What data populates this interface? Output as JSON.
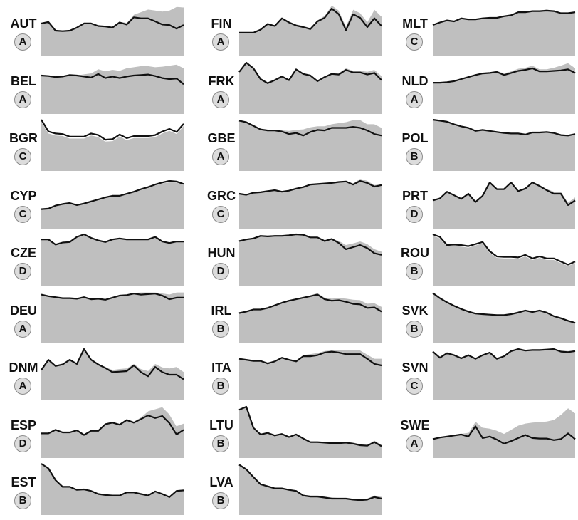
{
  "chart_data": {
    "type": "area",
    "layout": "small-multiples 3 columns",
    "colors": {
      "area": "#bfbfbf",
      "line": "#111111",
      "badge": "#dcdcdc"
    },
    "panels": [
      {
        "country": "AUT",
        "grade": "A",
        "line": [
          64,
          67,
          50,
          49,
          50,
          56,
          64,
          64,
          59,
          58,
          56,
          66,
          62,
          76,
          74,
          74,
          68,
          62,
          61,
          54,
          61
        ],
        "area": [
          64,
          67,
          50,
          49,
          50,
          56,
          65,
          65,
          59,
          59,
          57,
          68,
          66,
          82,
          87,
          92,
          90,
          88,
          90,
          97,
          96
        ]
      },
      {
        "country": "BEL",
        "grade": "A",
        "line": [
          75,
          74,
          72,
          73,
          76,
          75,
          73,
          71,
          78,
          70,
          73,
          70,
          73,
          75,
          76,
          77,
          74,
          70,
          68,
          69,
          58
        ],
        "area": [
          75,
          74,
          72,
          73,
          76,
          76,
          78,
          80,
          88,
          84,
          87,
          85,
          90,
          92,
          94,
          94,
          92,
          93,
          95,
          97,
          90
        ]
      },
      {
        "country": "BGR",
        "grade": "C",
        "line": [
          100,
          77,
          73,
          72,
          67,
          67,
          67,
          73,
          70,
          61,
          62,
          71,
          64,
          68,
          68,
          68,
          70,
          77,
          82,
          76,
          92
        ],
        "area": [
          98,
          74,
          70,
          69,
          64,
          64,
          64,
          70,
          67,
          58,
          59,
          68,
          61,
          65,
          65,
          65,
          67,
          74,
          79,
          73,
          89
        ]
      },
      {
        "country": "CYP",
        "grade": "C",
        "line": [
          38,
          39,
          45,
          48,
          50,
          46,
          49,
          53,
          57,
          61,
          64,
          64,
          68,
          72,
          77,
          81,
          86,
          90,
          93,
          92,
          87
        ],
        "area": [
          38,
          39,
          45,
          48,
          50,
          46,
          49,
          53,
          57,
          61,
          64,
          64,
          68,
          72,
          77,
          81,
          85,
          89,
          91,
          91,
          86
        ]
      },
      {
        "country": "CZE",
        "grade": "D",
        "line": [
          90,
          90,
          80,
          84,
          85,
          95,
          100,
          93,
          88,
          85,
          90,
          92,
          90,
          90,
          90,
          90,
          95,
          86,
          83,
          86,
          86
        ],
        "area": [
          90,
          90,
          80,
          84,
          85,
          95,
          100,
          93,
          88,
          85,
          90,
          92,
          90,
          90,
          90,
          90,
          95,
          87,
          85,
          88,
          88
        ]
      },
      {
        "country": "DEU",
        "grade": "A",
        "line": [
          95,
          92,
          90,
          88,
          88,
          87,
          90,
          86,
          87,
          85,
          89,
          93,
          94,
          97,
          95,
          96,
          97,
          93,
          86,
          89,
          89
        ],
        "area": [
          95,
          92,
          90,
          88,
          88,
          87,
          90,
          86,
          87,
          85,
          89,
          93,
          95,
          99,
          100,
          100,
          100,
          98,
          96,
          100,
          100
        ]
      },
      {
        "country": "DNM",
        "grade": "A",
        "line": [
          59,
          79,
          67,
          70,
          79,
          71,
          100,
          79,
          70,
          63,
          55,
          56,
          57,
          68,
          55,
          47,
          65,
          55,
          50,
          50,
          41
        ],
        "area": [
          59,
          79,
          67,
          70,
          79,
          71,
          100,
          80,
          72,
          66,
          60,
          62,
          63,
          72,
          62,
          58,
          72,
          65,
          63,
          66,
          56
        ]
      },
      {
        "country": "ESP",
        "grade": "D",
        "line": [
          48,
          48,
          55,
          50,
          50,
          54,
          45,
          53,
          53,
          66,
          69,
          65,
          74,
          69,
          76,
          83,
          78,
          82,
          68,
          46,
          55
        ],
        "area": [
          48,
          48,
          55,
          50,
          50,
          54,
          45,
          53,
          53,
          67,
          70,
          67,
          77,
          72,
          80,
          92,
          96,
          100,
          86,
          63,
          68
        ]
      },
      {
        "country": "EST",
        "grade": "B",
        "line": [
          100,
          91,
          68,
          55,
          55,
          49,
          50,
          47,
          41,
          39,
          38,
          38,
          44,
          44,
          41,
          38,
          46,
          41,
          35,
          47,
          48
        ],
        "area": [
          100,
          91,
          68,
          55,
          55,
          49,
          50,
          47,
          41,
          39,
          38,
          38,
          44,
          44,
          41,
          38,
          46,
          41,
          35,
          47,
          48
        ]
      },
      {
        "country": "FIN",
        "grade": "A",
        "line": [
          46,
          46,
          46,
          52,
          63,
          59,
          74,
          66,
          60,
          57,
          53,
          68,
          75,
          93,
          82,
          51,
          82,
          75,
          57,
          74,
          59
        ],
        "area": [
          46,
          46,
          46,
          52,
          64,
          60,
          76,
          68,
          63,
          60,
          56,
          71,
          80,
          100,
          90,
          60,
          92,
          85,
          68,
          92,
          78
        ]
      },
      {
        "country": "FRK",
        "grade": "A",
        "line": [
          82,
          100,
          89,
          68,
          60,
          66,
          73,
          66,
          87,
          78,
          75,
          64,
          72,
          78,
          77,
          86,
          81,
          81,
          77,
          80,
          66
        ],
        "area": [
          82,
          100,
          89,
          68,
          60,
          66,
          73,
          66,
          87,
          78,
          75,
          64,
          74,
          81,
          81,
          90,
          85,
          85,
          83,
          87,
          75
        ]
      },
      {
        "country": "GBE",
        "grade": "A",
        "line": [
          98,
          95,
          88,
          81,
          79,
          79,
          77,
          72,
          74,
          69,
          76,
          80,
          79,
          84,
          84,
          84,
          86,
          84,
          79,
          72,
          69
        ],
        "area": [
          98,
          95,
          88,
          81,
          80,
          81,
          80,
          79,
          81,
          82,
          86,
          88,
          88,
          92,
          94,
          96,
          100,
          100,
          92,
          92,
          85
        ]
      },
      {
        "country": "GRC",
        "grade": "C",
        "line": [
          68,
          66,
          70,
          71,
          73,
          75,
          72,
          74,
          78,
          81,
          86,
          87,
          88,
          89,
          91,
          92,
          86,
          93,
          89,
          82,
          85
        ],
        "area": [
          68,
          66,
          70,
          71,
          73,
          75,
          72,
          74,
          78,
          81,
          86,
          87,
          88,
          90,
          92,
          94,
          89,
          98,
          94,
          86,
          87
        ]
      },
      {
        "country": "HUN",
        "grade": "D",
        "line": [
          87,
          90,
          92,
          97,
          96,
          97,
          97,
          98,
          100,
          99,
          94,
          94,
          87,
          91,
          83,
          71,
          75,
          79,
          73,
          63,
          60
        ],
        "area": [
          87,
          90,
          92,
          97,
          96,
          97,
          97,
          98,
          100,
          99,
          94,
          94,
          88,
          92,
          88,
          80,
          83,
          87,
          82,
          72,
          67
        ]
      },
      {
        "country": "IRL",
        "grade": "B",
        "line": [
          59,
          62,
          66,
          66,
          69,
          74,
          79,
          83,
          86,
          89,
          92,
          95,
          86,
          83,
          84,
          81,
          77,
          76,
          69,
          70,
          62
        ],
        "area": [
          59,
          62,
          66,
          66,
          69,
          74,
          79,
          83,
          87,
          90,
          94,
          99,
          90,
          88,
          89,
          88,
          86,
          85,
          78,
          79,
          72
        ]
      },
      {
        "country": "ITA",
        "grade": "B",
        "line": [
          81,
          79,
          77,
          77,
          72,
          76,
          83,
          79,
          76,
          86,
          86,
          88,
          93,
          95,
          93,
          90,
          90,
          90,
          81,
          71,
          68
        ],
        "area": [
          81,
          79,
          77,
          77,
          72,
          76,
          83,
          79,
          78,
          89,
          91,
          93,
          97,
          98,
          98,
          99,
          99,
          98,
          90,
          82,
          82
        ]
      },
      {
        "country": "LTU",
        "grade": "B",
        "line": [
          94,
          100,
          59,
          46,
          49,
          44,
          47,
          41,
          46,
          38,
          31,
          31,
          30,
          29,
          29,
          30,
          28,
          25,
          24,
          31,
          23
        ],
        "area": [
          94,
          100,
          59,
          46,
          49,
          44,
          47,
          41,
          46,
          38,
          31,
          32,
          31,
          31,
          31,
          32,
          31,
          28,
          27,
          35,
          27
        ]
      },
      {
        "country": "LVA",
        "grade": "B",
        "line": [
          98,
          89,
          74,
          60,
          56,
          52,
          52,
          49,
          47,
          38,
          36,
          36,
          34,
          32,
          32,
          32,
          30,
          29,
          30,
          35,
          32
        ],
        "area": [
          98,
          89,
          74,
          60,
          56,
          52,
          52,
          49,
          47,
          40,
          39,
          39,
          37,
          35,
          34,
          34,
          32,
          31,
          33,
          39,
          36
        ]
      },
      {
        "country": "MLT",
        "grade": "C",
        "line": [
          61,
          66,
          70,
          68,
          74,
          72,
          72,
          74,
          75,
          75,
          78,
          80,
          86,
          86,
          88,
          88,
          89,
          88,
          84,
          84,
          86
        ],
        "area": [
          61,
          66,
          70,
          68,
          74,
          72,
          72,
          74,
          75,
          75,
          78,
          81,
          88,
          88,
          89,
          90,
          92,
          89,
          86,
          86,
          87
        ]
      },
      {
        "country": "NLD",
        "grade": "A",
        "line": [
          61,
          61,
          62,
          64,
          68,
          72,
          76,
          79,
          80,
          82,
          76,
          80,
          84,
          86,
          89,
          83,
          83,
          84,
          85,
          87,
          80
        ],
        "area": [
          61,
          61,
          62,
          64,
          68,
          72,
          77,
          81,
          82,
          85,
          80,
          84,
          89,
          91,
          95,
          88,
          88,
          91,
          95,
          100,
          90
        ]
      },
      {
        "country": "POL",
        "grade": "B",
        "line": [
          100,
          98,
          96,
          91,
          87,
          84,
          78,
          80,
          78,
          76,
          74,
          73,
          73,
          71,
          75,
          75,
          76,
          74,
          70,
          69,
          72
        ],
        "area": [
          100,
          98,
          96,
          91,
          87,
          84,
          78,
          80,
          78,
          76,
          74,
          73,
          73,
          71,
          75,
          75,
          76,
          74,
          71,
          70,
          73
        ]
      },
      {
        "country": "PRT",
        "grade": "D",
        "line": [
          55,
          59,
          72,
          65,
          58,
          68,
          52,
          64,
          90,
          77,
          77,
          90,
          73,
          78,
          90,
          83,
          75,
          68,
          68,
          46,
          55
        ],
        "area": [
          55,
          59,
          72,
          65,
          58,
          68,
          52,
          64,
          92,
          79,
          79,
          92,
          75,
          80,
          93,
          86,
          78,
          73,
          73,
          52,
          62
        ]
      },
      {
        "country": "ROU",
        "grade": "B",
        "line": [
          100,
          95,
          79,
          80,
          79,
          77,
          81,
          85,
          67,
          57,
          56,
          56,
          55,
          60,
          53,
          57,
          53,
          53,
          47,
          41,
          47
        ],
        "area": [
          98,
          93,
          77,
          78,
          77,
          75,
          79,
          83,
          65,
          55,
          54,
          54,
          53,
          58,
          51,
          55,
          51,
          51,
          45,
          39,
          45
        ]
      },
      {
        "country": "SVK",
        "grade": "B",
        "line": [
          98,
          88,
          80,
          73,
          67,
          62,
          58,
          57,
          56,
          55,
          55,
          57,
          60,
          64,
          61,
          64,
          60,
          53,
          49,
          44,
          40
        ],
        "area": [
          98,
          88,
          80,
          73,
          67,
          62,
          58,
          57,
          56,
          56,
          56,
          59,
          63,
          66,
          64,
          66,
          62,
          55,
          51,
          46,
          42
        ]
      },
      {
        "country": "SVN",
        "grade": "C",
        "line": [
          95,
          83,
          92,
          88,
          82,
          88,
          81,
          88,
          93,
          81,
          86,
          96,
          100,
          97,
          98,
          98,
          99,
          100,
          95,
          94,
          96
        ],
        "area": [
          96,
          85,
          93,
          89,
          84,
          89,
          83,
          90,
          94,
          83,
          88,
          97,
          100,
          99,
          99,
          100,
          100,
          100,
          98,
          97,
          98
        ]
      },
      {
        "country": "SWE",
        "grade": "A",
        "line": [
          37,
          40,
          42,
          44,
          46,
          42,
          62,
          39,
          42,
          36,
          28,
          33,
          39,
          45,
          39,
          38,
          38,
          35,
          37,
          48,
          37
        ],
        "area": [
          37,
          40,
          42,
          44,
          48,
          50,
          72,
          60,
          58,
          54,
          48,
          56,
          64,
          68,
          70,
          71,
          72,
          75,
          85,
          98,
          88
        ]
      }
    ]
  }
}
